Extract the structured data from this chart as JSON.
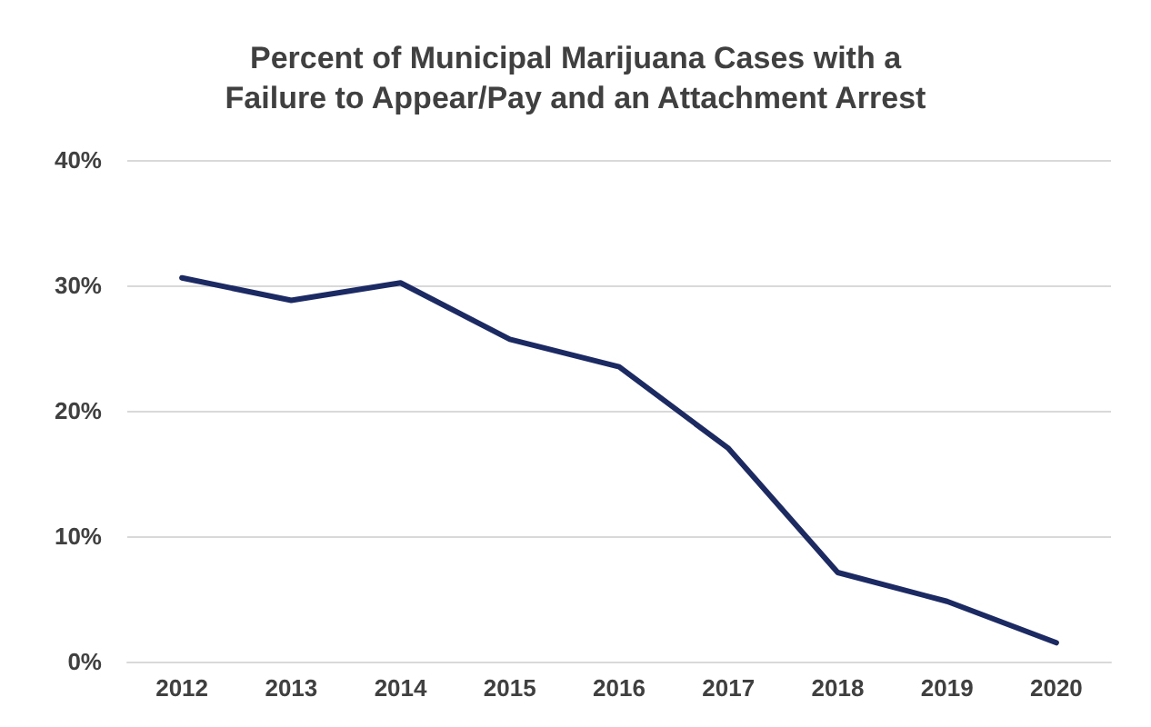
{
  "chart_data": {
    "type": "line",
    "title": "Percent of Municipal Marijuana Cases with a\nFailure to Appear/Pay and an Attachment Arrest",
    "categories": [
      "2012",
      "2013",
      "2014",
      "2015",
      "2016",
      "2017",
      "2018",
      "2019",
      "2020"
    ],
    "series": [
      {
        "color": "#1c2a64",
        "values": [
          30.6,
          28.8,
          30.2,
          25.7,
          23.5,
          17.0,
          7.1,
          4.8,
          1.5
        ]
      }
    ],
    "ylim": [
      0,
      40
    ],
    "yticks": [
      {
        "value": 0,
        "label": "0%"
      },
      {
        "value": 10,
        "label": "10%"
      },
      {
        "value": 20,
        "label": "20%"
      },
      {
        "value": 30,
        "label": "30%"
      },
      {
        "value": 40,
        "label": "40%"
      }
    ],
    "grid": "y",
    "marker": "none",
    "line_style": "solid"
  }
}
